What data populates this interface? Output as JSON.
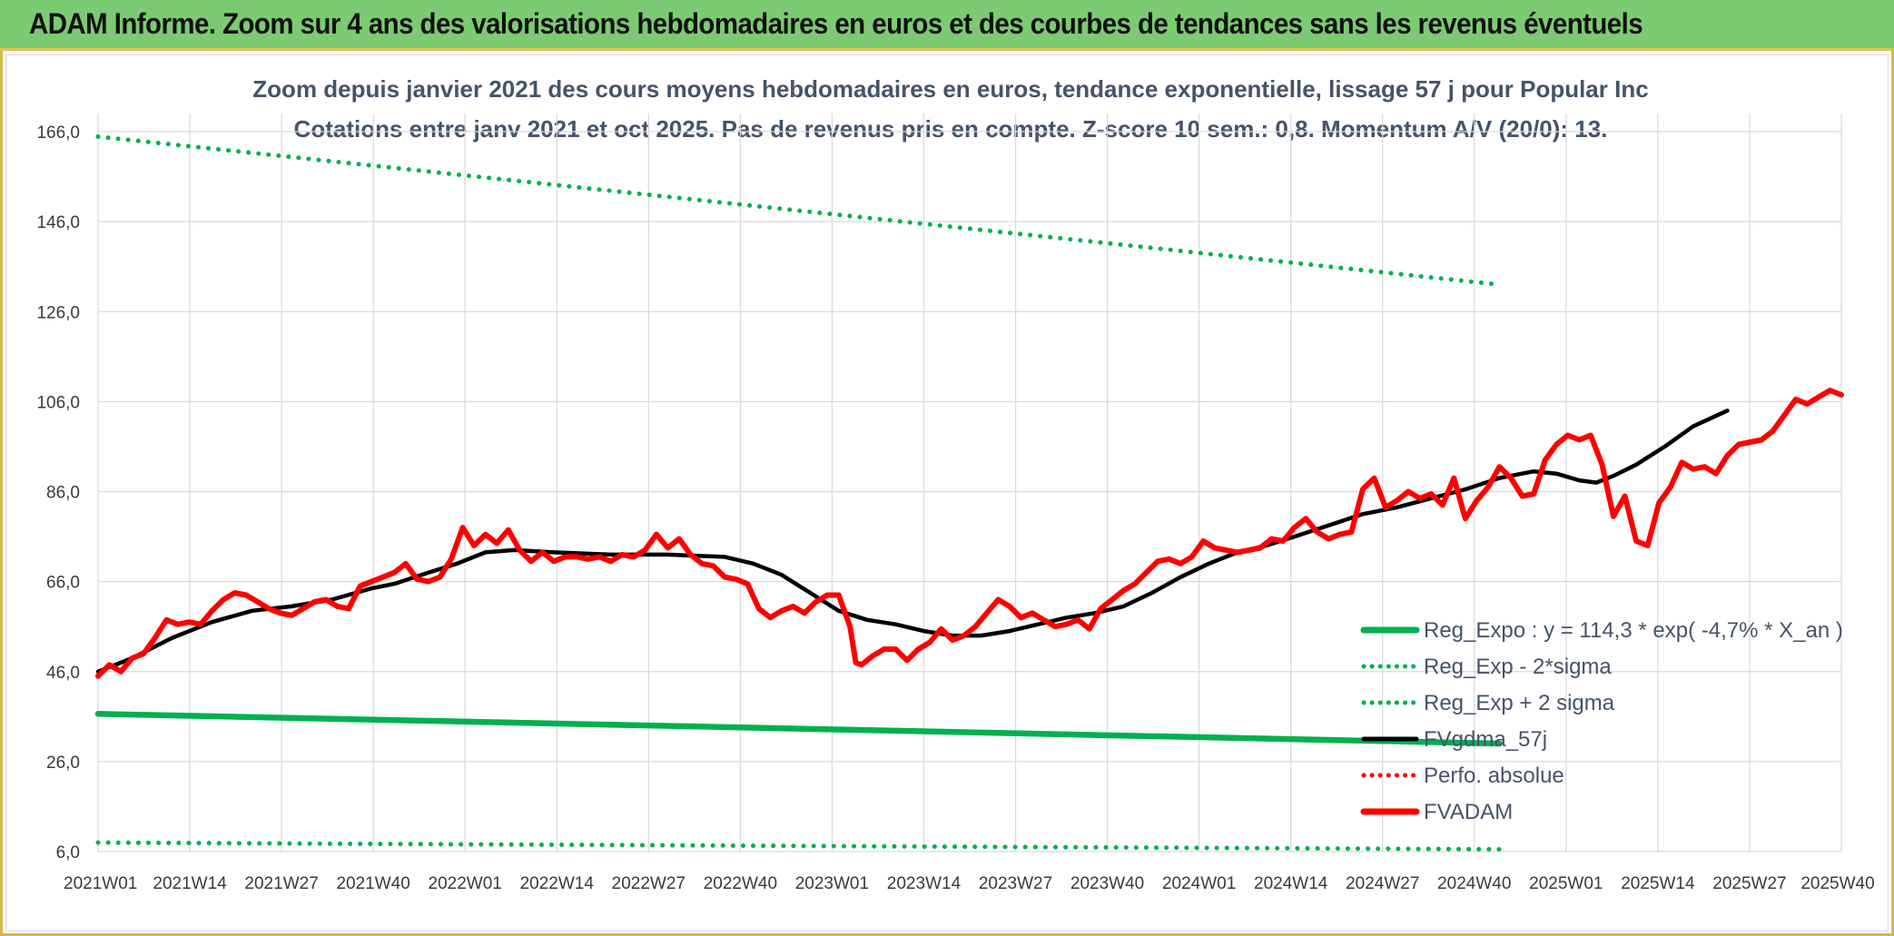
{
  "header": {
    "title": "ADAM Informe. Zoom sur 4 ans des valorisations hebdomadaires en euros et des courbes de tendances sans les revenus éventuels"
  },
  "chart_data": {
    "type": "line",
    "title": "Zoom depuis janvier 2021 des cours moyens hebdomadaires en euros, tendance exponentielle, lissage 57 j pour Popular Inc",
    "subtitle": "Cotations entre janv 2021 et oct 2025. Pas de revenus pris en compte. Z-score 10 sem.: 0,8. Momentum A/V (20/0): 13.",
    "xlabel": "",
    "ylabel": "",
    "ylim": [
      6.0,
      166.0
    ],
    "y_ticks": [
      "6,0",
      "26,0",
      "46,0",
      "66,0",
      "86,0",
      "106,0",
      "126,0",
      "146,0",
      "166,0"
    ],
    "x_ticks": [
      "2021W01",
      "2021W14",
      "2021W27",
      "2021W40",
      "2022W01",
      "2022W14",
      "2022W27",
      "2022W40",
      "2023W01",
      "2023W14",
      "2023W27",
      "2023W40",
      "2024W01",
      "2024W14",
      "2024W27",
      "2024W40",
      "2025W01",
      "2025W14",
      "2025W27",
      "2025W40"
    ],
    "grid": true,
    "legend_position": "bottom-right",
    "colors": {
      "green": "#00b050",
      "black": "#000000",
      "red": "#ff0000",
      "text": "#44546a"
    },
    "series": [
      {
        "name": "Reg_Expo : y = 114,3 * exp( -4,7% *  X_an )",
        "style": "solid-thick",
        "color": "#00b050",
        "points": [
          [
            0,
            36.6
          ],
          [
            246,
            30.0
          ]
        ]
      },
      {
        "name": "Reg_Exp - 2*sigma",
        "style": "dotted",
        "color": "#00b050",
        "points": [
          [
            0,
            8.0
          ],
          [
            246,
            6.5
          ]
        ]
      },
      {
        "name": "Reg_Exp + 2 sigma",
        "style": "dotted",
        "color": "#00b050",
        "points": [
          [
            0,
            164.9
          ],
          [
            246,
            132.0
          ]
        ]
      },
      {
        "name": "FVgdma_57j",
        "style": "solid",
        "color": "#000000",
        "points": [
          [
            0,
            46.0
          ],
          [
            6,
            49.0
          ],
          [
            13,
            53.5
          ],
          [
            20,
            57.0
          ],
          [
            27,
            59.5
          ],
          [
            34,
            60.5
          ],
          [
            41,
            62.0
          ],
          [
            48,
            64.5
          ],
          [
            52,
            65.5
          ],
          [
            58,
            68.0
          ],
          [
            63,
            70.0
          ],
          [
            68,
            72.5
          ],
          [
            73,
            73.0
          ],
          [
            80,
            72.5
          ],
          [
            90,
            72.0
          ],
          [
            100,
            72.0
          ],
          [
            110,
            71.5
          ],
          [
            115,
            70.0
          ],
          [
            120,
            67.5
          ],
          [
            125,
            63.5
          ],
          [
            130,
            59.5
          ],
          [
            135,
            57.5
          ],
          [
            140,
            56.5
          ],
          [
            145,
            55.0
          ],
          [
            150,
            54.0
          ],
          [
            155,
            54.0
          ],
          [
            160,
            55.0
          ],
          [
            165,
            56.5
          ],
          [
            170,
            58.0
          ],
          [
            175,
            59.0
          ],
          [
            180,
            60.5
          ],
          [
            185,
            63.5
          ],
          [
            190,
            67.0
          ],
          [
            195,
            70.0
          ],
          [
            200,
            72.5
          ],
          [
            205,
            74.0
          ],
          [
            210,
            76.0
          ],
          [
            216,
            78.5
          ],
          [
            222,
            81.0
          ],
          [
            228,
            82.5
          ],
          [
            234,
            84.5
          ],
          [
            240,
            86.5
          ],
          [
            246,
            89.0
          ],
          [
            252,
            90.5
          ],
          [
            256,
            90.0
          ],
          [
            260,
            88.5
          ],
          [
            263,
            88.0
          ],
          [
            266,
            89.5
          ],
          [
            270,
            92.0
          ],
          [
            275,
            96.0
          ],
          [
            280,
            100.5
          ],
          [
            286,
            104.0
          ]
        ]
      },
      {
        "name": "Perfo. absolue",
        "style": "dotted",
        "color": "#ff0000",
        "points": []
      },
      {
        "name": "FVADAM",
        "style": "solid-thick",
        "color": "#ff0000",
        "points": [
          [
            0,
            45.0
          ],
          [
            2,
            47.5
          ],
          [
            4,
            46.0
          ],
          [
            6,
            49.0
          ],
          [
            8,
            50.0
          ],
          [
            10,
            53.5
          ],
          [
            12,
            57.5
          ],
          [
            14,
            56.5
          ],
          [
            16,
            57.0
          ],
          [
            18,
            56.5
          ],
          [
            20,
            59.5
          ],
          [
            22,
            62.0
          ],
          [
            24,
            63.5
          ],
          [
            26,
            63.0
          ],
          [
            28,
            61.5
          ],
          [
            30,
            60.0
          ],
          [
            32,
            59.0
          ],
          [
            34,
            58.5
          ],
          [
            36,
            60.0
          ],
          [
            38,
            61.5
          ],
          [
            40,
            62.0
          ],
          [
            42,
            60.5
          ],
          [
            44,
            60.0
          ],
          [
            46,
            65.0
          ],
          [
            48,
            66.0
          ],
          [
            50,
            67.0
          ],
          [
            52,
            68.0
          ],
          [
            54,
            70.0
          ],
          [
            56,
            66.5
          ],
          [
            58,
            66.0
          ],
          [
            60,
            67.0
          ],
          [
            62,
            71.0
          ],
          [
            64,
            78.0
          ],
          [
            66,
            74.0
          ],
          [
            68,
            76.5
          ],
          [
            70,
            74.5
          ],
          [
            72,
            77.5
          ],
          [
            74,
            73.0
          ],
          [
            76,
            70.5
          ],
          [
            78,
            72.5
          ],
          [
            80,
            70.5
          ],
          [
            82,
            71.5
          ],
          [
            84,
            71.5
          ],
          [
            86,
            71.0
          ],
          [
            88,
            71.5
          ],
          [
            90,
            70.5
          ],
          [
            92,
            72.0
          ],
          [
            94,
            71.5
          ],
          [
            96,
            73.0
          ],
          [
            98,
            76.5
          ],
          [
            100,
            73.5
          ],
          [
            102,
            75.5
          ],
          [
            104,
            72.0
          ],
          [
            106,
            70.0
          ],
          [
            108,
            69.5
          ],
          [
            110,
            67.0
          ],
          [
            112,
            66.5
          ],
          [
            114,
            65.5
          ],
          [
            116,
            60.0
          ],
          [
            118,
            58.0
          ],
          [
            120,
            59.5
          ],
          [
            122,
            60.5
          ],
          [
            124,
            59.0
          ],
          [
            126,
            61.5
          ],
          [
            128,
            63.0
          ],
          [
            130,
            63.0
          ],
          [
            132,
            56.0
          ],
          [
            133,
            48.0
          ],
          [
            134,
            47.5
          ],
          [
            136,
            49.5
          ],
          [
            138,
            51.0
          ],
          [
            140,
            51.0
          ],
          [
            142,
            48.5
          ],
          [
            144,
            51.0
          ],
          [
            146,
            52.5
          ],
          [
            148,
            55.5
          ],
          [
            150,
            53.0
          ],
          [
            152,
            54.0
          ],
          [
            154,
            56.0
          ],
          [
            156,
            59.0
          ],
          [
            158,
            62.0
          ],
          [
            160,
            60.5
          ],
          [
            162,
            58.0
          ],
          [
            164,
            59.0
          ],
          [
            166,
            57.5
          ],
          [
            168,
            56.0
          ],
          [
            170,
            56.5
          ],
          [
            172,
            57.5
          ],
          [
            174,
            55.5
          ],
          [
            176,
            60.0
          ],
          [
            178,
            62.0
          ],
          [
            180,
            64.0
          ],
          [
            182,
            65.5
          ],
          [
            184,
            68.0
          ],
          [
            186,
            70.5
          ],
          [
            188,
            71.0
          ],
          [
            190,
            70.0
          ],
          [
            192,
            71.5
          ],
          [
            194,
            75.0
          ],
          [
            196,
            73.5
          ],
          [
            198,
            73.0
          ],
          [
            200,
            72.5
          ],
          [
            202,
            73.0
          ],
          [
            204,
            73.5
          ],
          [
            206,
            75.5
          ],
          [
            208,
            75.0
          ],
          [
            210,
            78.0
          ],
          [
            212,
            80.0
          ],
          [
            214,
            77.0
          ],
          [
            216,
            75.5
          ],
          [
            218,
            76.5
          ],
          [
            220,
            77.0
          ],
          [
            222,
            86.5
          ],
          [
            224,
            89.0
          ],
          [
            226,
            82.5
          ],
          [
            228,
            84.0
          ],
          [
            230,
            86.0
          ],
          [
            232,
            84.5
          ],
          [
            234,
            85.5
          ],
          [
            236,
            83.0
          ],
          [
            238,
            89.0
          ],
          [
            240,
            80.0
          ],
          [
            242,
            84.0
          ],
          [
            244,
            87.0
          ],
          [
            246,
            91.5
          ],
          [
            248,
            89.0
          ],
          [
            250,
            85.0
          ],
          [
            252,
            85.5
          ],
          [
            254,
            93.0
          ],
          [
            256,
            96.5
          ],
          [
            258,
            98.5
          ],
          [
            260,
            97.5
          ],
          [
            262,
            98.5
          ],
          [
            264,
            92.0
          ],
          [
            266,
            80.5
          ],
          [
            268,
            85.0
          ],
          [
            270,
            75.0
          ],
          [
            272,
            74.0
          ],
          [
            274,
            83.5
          ],
          [
            276,
            87.0
          ],
          [
            278,
            92.5
          ],
          [
            280,
            91.0
          ],
          [
            282,
            91.5
          ],
          [
            284,
            90.0
          ],
          [
            286,
            94.0
          ],
          [
            288,
            96.5
          ],
          [
            290,
            97.0
          ],
          [
            292,
            97.5
          ],
          [
            294,
            99.5
          ],
          [
            296,
            103.0
          ],
          [
            298,
            106.5
          ],
          [
            300,
            105.5
          ],
          [
            302,
            107.0
          ],
          [
            304,
            108.5
          ],
          [
            306,
            107.5
          ]
        ]
      }
    ]
  }
}
